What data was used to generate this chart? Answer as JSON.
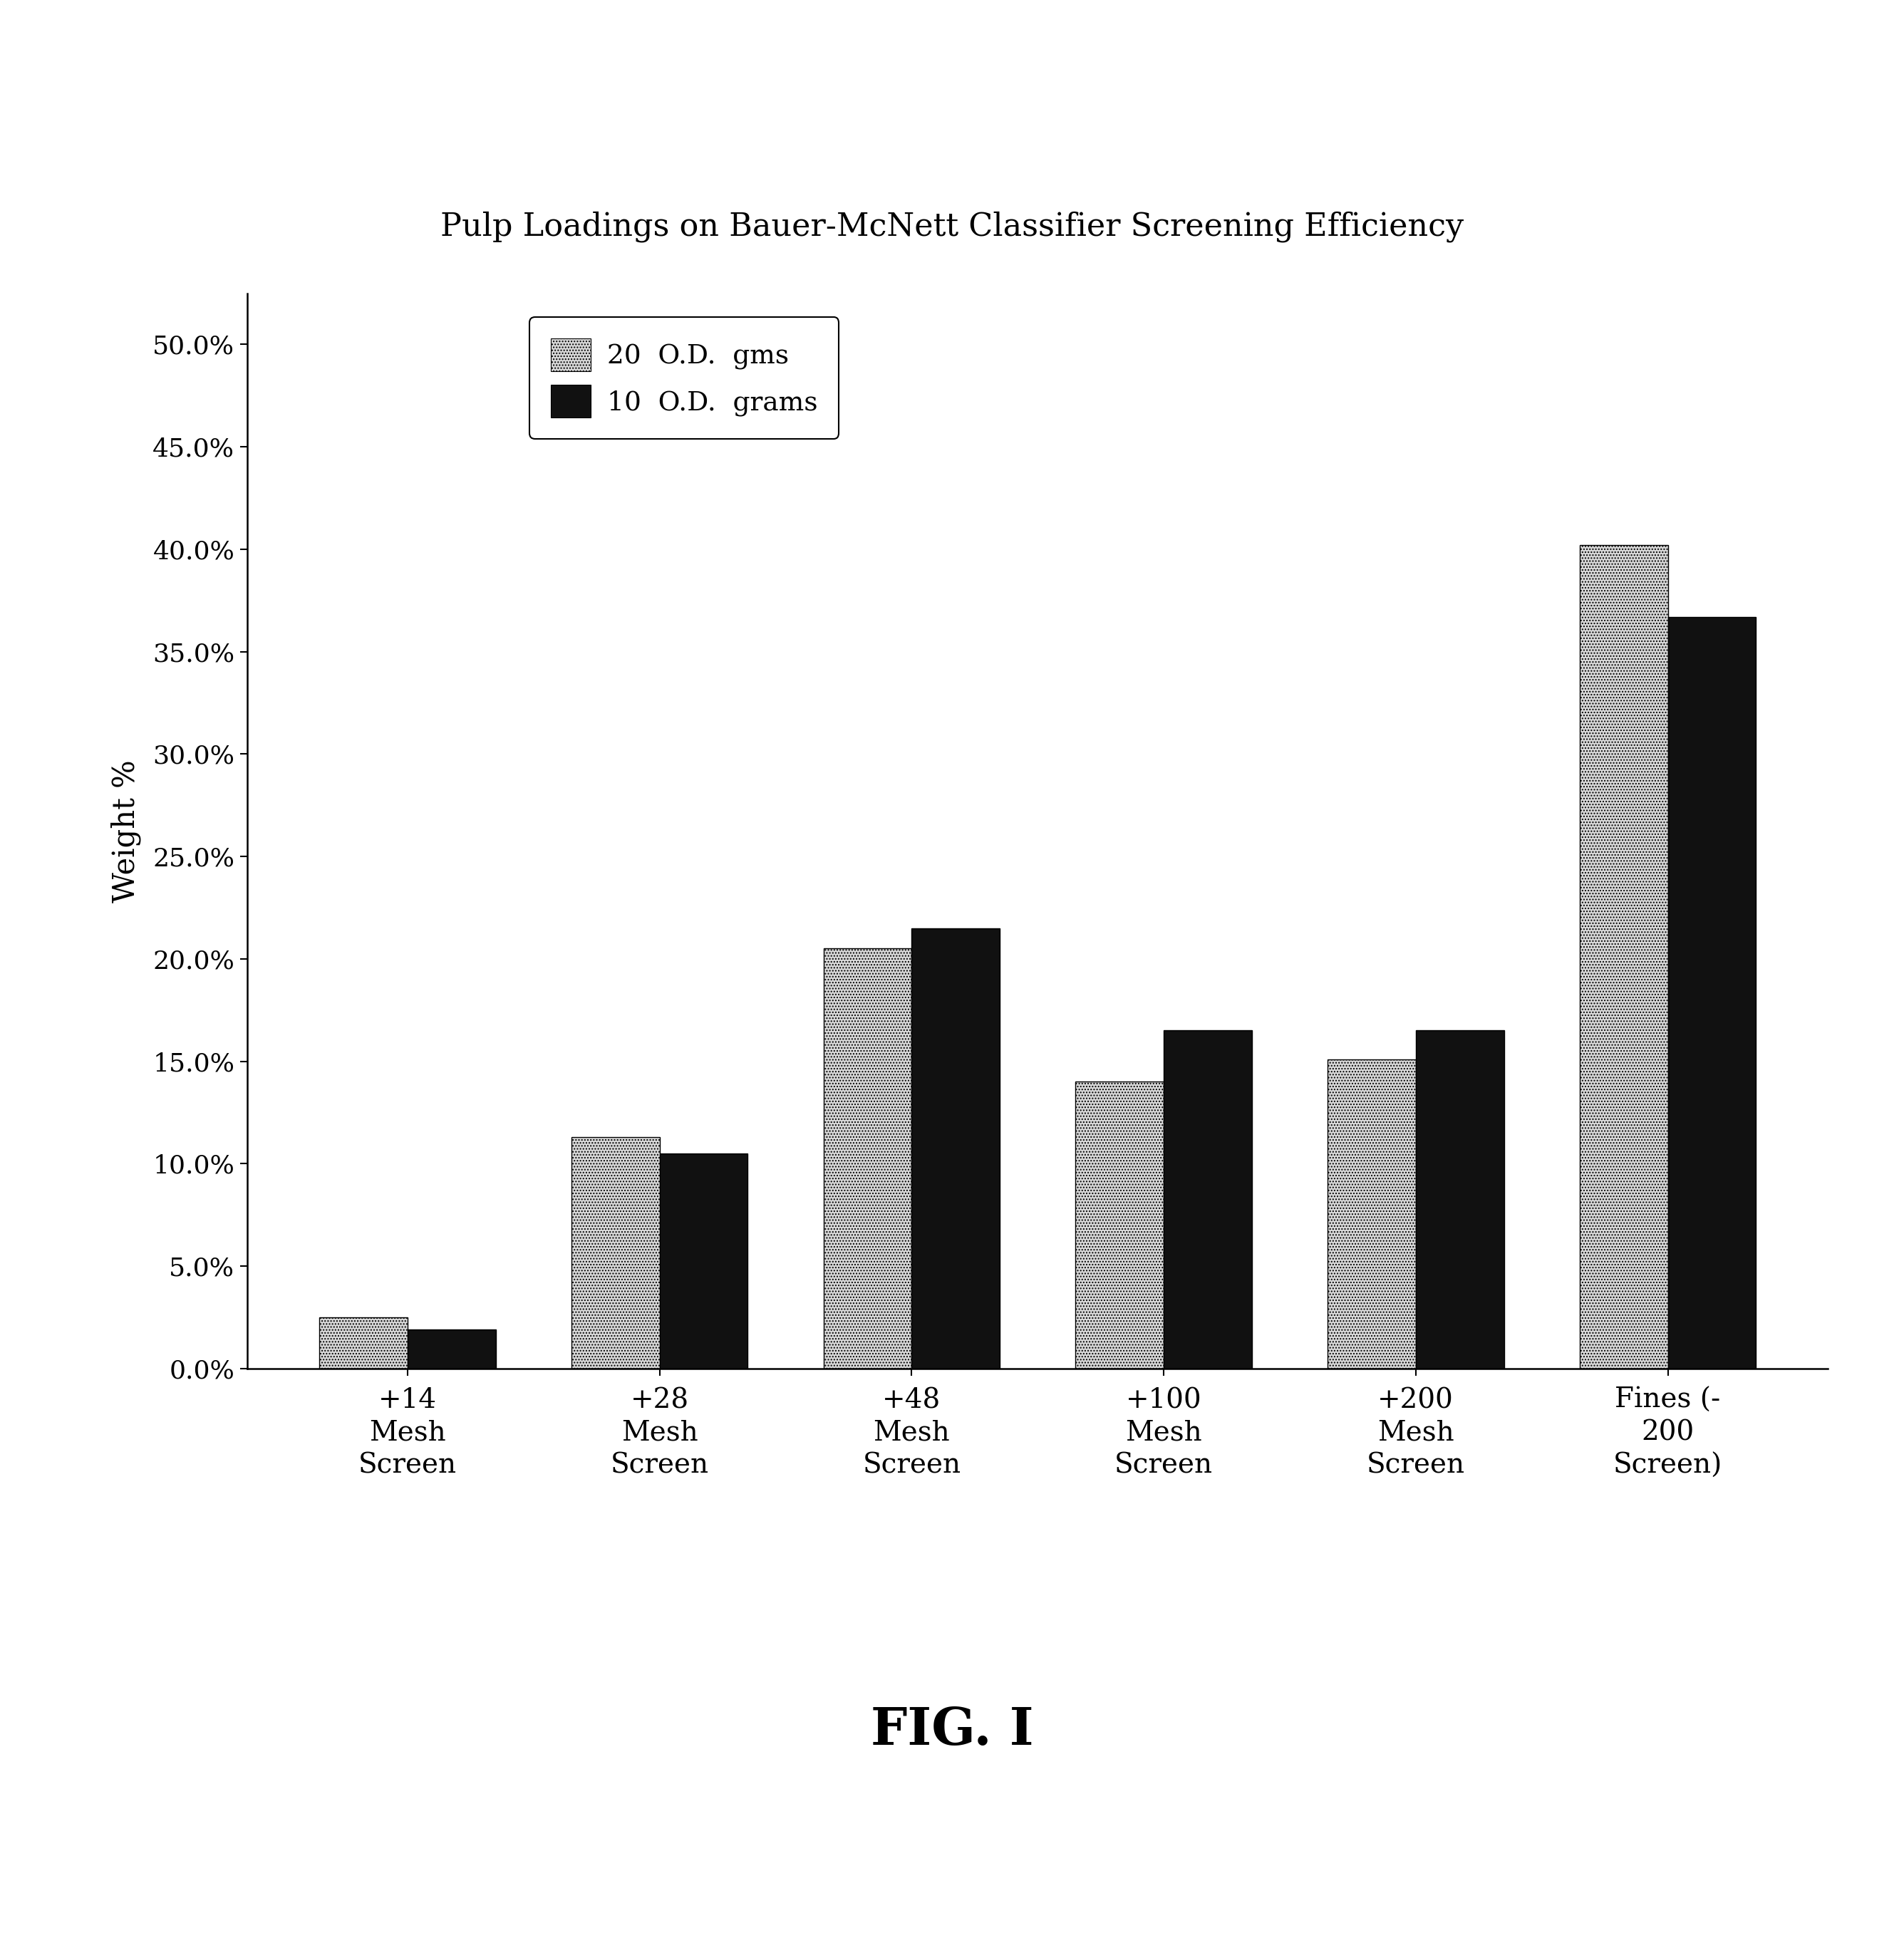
{
  "title": "Pulp Loadings on Bauer-McNett Classifier Screening Efficiency",
  "ylabel": "Weight %",
  "categories": [
    "+14\nMesh\nScreen",
    "+28\nMesh\nScreen",
    "+48\nMesh\nScreen",
    "+100\nMesh\nScreen",
    "+200\nMesh\nScreen",
    "Fines (-\n200\nScreen)"
  ],
  "series1_label": "20  O.D.  gms",
  "series2_label": "10  O.D.  grams",
  "series1_values": [
    2.5,
    11.3,
    20.5,
    14.0,
    15.1,
    40.2
  ],
  "series2_values": [
    1.9,
    10.5,
    21.5,
    16.5,
    16.5,
    36.7
  ],
  "ylim_max": 52.5,
  "yticks": [
    0.0,
    5.0,
    10.0,
    15.0,
    20.0,
    25.0,
    30.0,
    35.0,
    40.0,
    45.0,
    50.0
  ],
  "ytick_labels": [
    "0.0%",
    "5.0%",
    "10.0%",
    "15.0%",
    "20.0%",
    "25.0%",
    "30.0%",
    "35.0%",
    "40.0%",
    "45.0%",
    "50.0%"
  ],
  "bar_width": 0.35,
  "series1_color": "#d8d8d8",
  "series2_color": "#111111",
  "series1_hatch": "....",
  "background_color": "#ffffff",
  "fig_caption": "FIG. I",
  "title_fontsize": 32,
  "ylabel_fontsize": 30,
  "tick_fontsize": 26,
  "xtick_fontsize": 28,
  "legend_fontsize": 27,
  "caption_fontsize": 52
}
